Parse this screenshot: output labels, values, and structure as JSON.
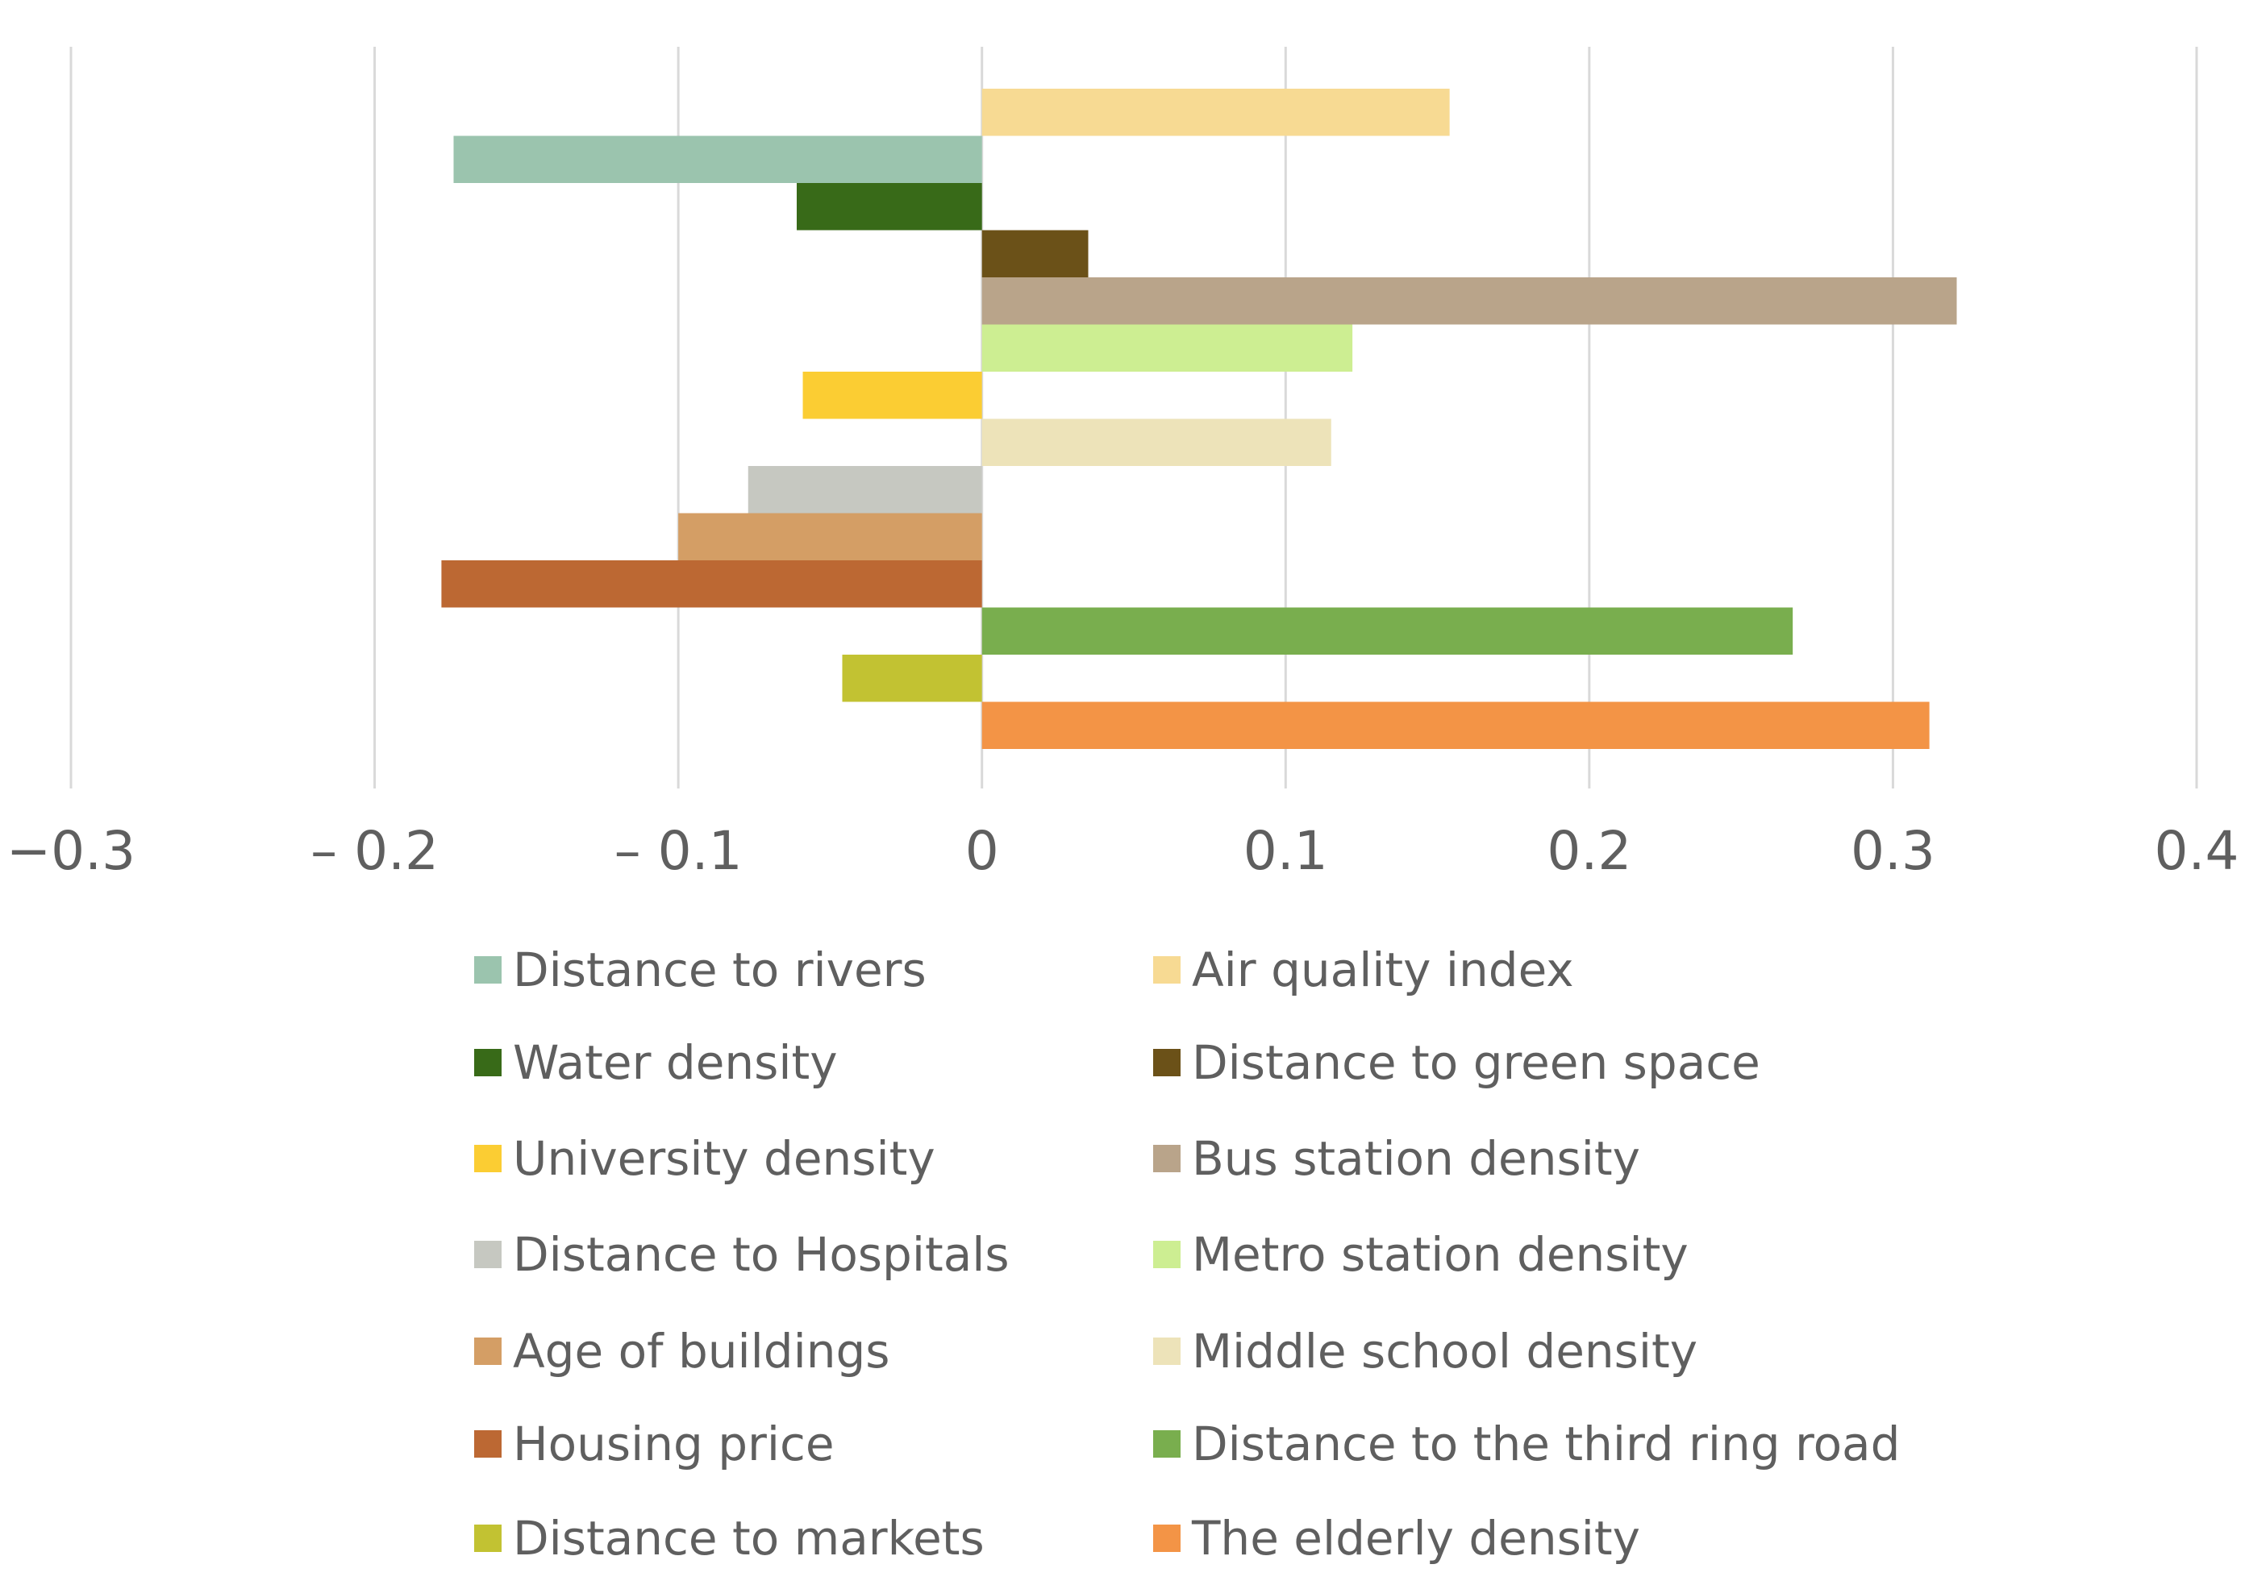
{
  "chart_data": {
    "type": "bar",
    "orientation": "horizontal",
    "title": "",
    "xlabel": "",
    "ylabel": "",
    "xlim": [
      -0.3,
      0.4
    ],
    "grid": true,
    "legend_position": "bottom",
    "x_ticks": [
      -0.3,
      -0.2,
      -0.1,
      0,
      0.1,
      0.2,
      0.3,
      0.4
    ],
    "x_tick_labels": [
      "−0.3",
      "– 0.2",
      "– 0.1",
      "0",
      "0.1",
      "0.2",
      "0.3",
      "0.4"
    ],
    "series": [
      {
        "name": "Air quality index",
        "value": 0.154,
        "color": "#F7DA93"
      },
      {
        "name": "Distance to rivers",
        "value": -0.174,
        "color": "#9BC4AE"
      },
      {
        "name": "Water density",
        "value": -0.061,
        "color": "#386A18"
      },
      {
        "name": "Distance to green space",
        "value": 0.035,
        "color": "#6B5118"
      },
      {
        "name": "Bus station density",
        "value": 0.321,
        "color": "#B9A48A"
      },
      {
        "name": "Metro station density",
        "value": 0.122,
        "color": "#CDEE92"
      },
      {
        "name": "University density",
        "value": -0.059,
        "color": "#FBCD33"
      },
      {
        "name": "Middle school density",
        "value": 0.115,
        "color": "#EDE3B9"
      },
      {
        "name": "Distance to Hospitals",
        "value": -0.077,
        "color": "#C6C8C1"
      },
      {
        "name": "Age of buildings",
        "value": -0.1,
        "color": "#D49E65"
      },
      {
        "name": "Housing price",
        "value": -0.178,
        "color": "#BC6833"
      },
      {
        "name": "Distance to the third ring road",
        "value": 0.267,
        "color": "#79AE4E"
      },
      {
        "name": "Distance to markets",
        "value": -0.046,
        "color": "#C2C232"
      },
      {
        "name": "The elderly density",
        "value": 0.312,
        "color": "#F39446"
      }
    ],
    "legend_order": [
      "Distance to rivers",
      "Air quality index",
      "Water density",
      "Distance to green space",
      "University density",
      "Bus station density",
      "Distance to Hospitals",
      "Metro station density",
      "Age of buildings",
      "Middle school density",
      "Housing price",
      "Distance to the third ring road",
      "Distance to markets",
      "The elderly density"
    ]
  }
}
